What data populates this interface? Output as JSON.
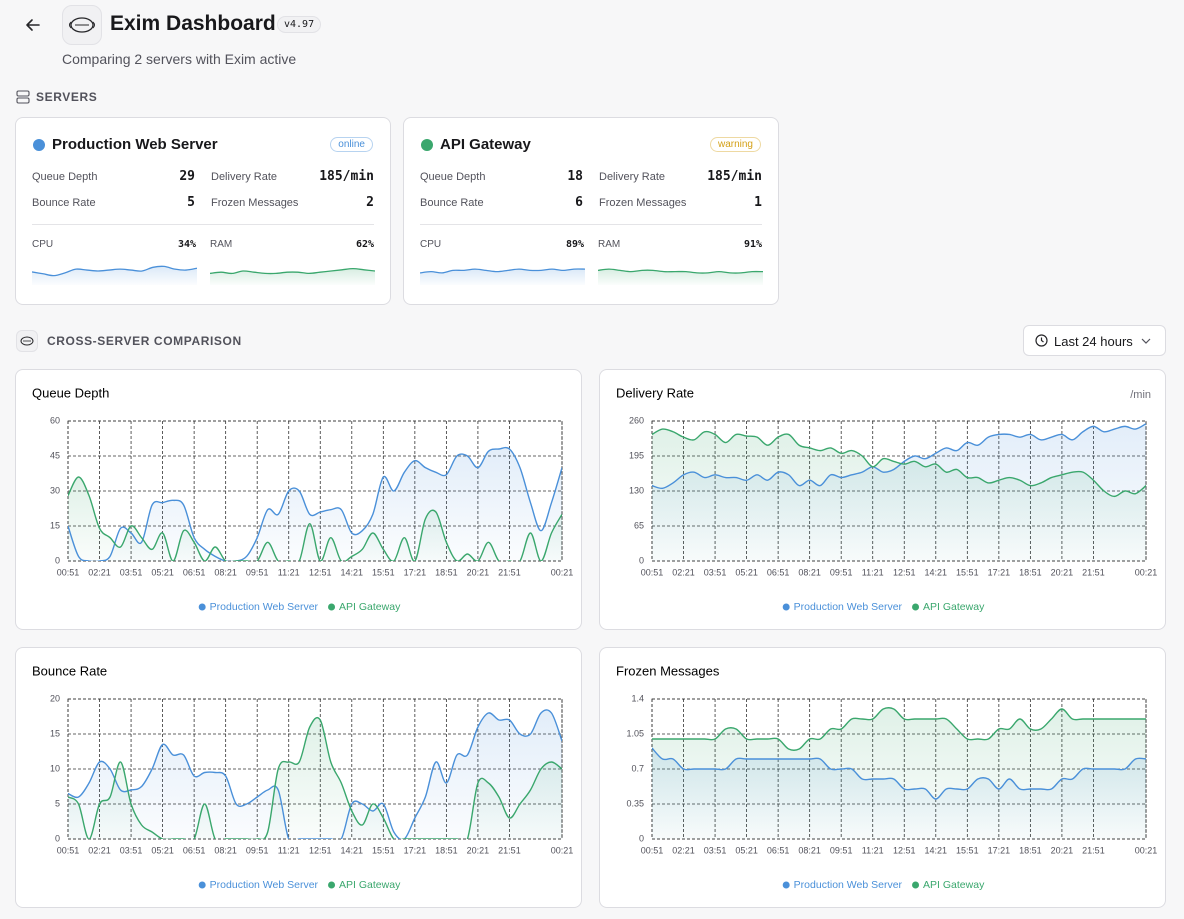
{
  "header": {
    "title": "Exim Dashboard",
    "version": "v4.97",
    "subtitle": "Comparing 2 servers with Exim active"
  },
  "servers_section": "SERVERS",
  "servers": [
    {
      "name": "Production Web Server",
      "status": "online",
      "status_color": "#4a90d9",
      "color": "#4a90d9",
      "metrics": [
        {
          "label": "Queue Depth",
          "value": 29
        },
        {
          "label": "Delivery Rate",
          "value": "185/min"
        },
        {
          "label": "Bounce Rate",
          "value": 5
        },
        {
          "label": "Frozen Messages",
          "value": 2
        }
      ],
      "cpu_label": "CPU",
      "cpu": "34%",
      "cpu_history": [
        30,
        28,
        26,
        29,
        33,
        32,
        31,
        32,
        33,
        32,
        31,
        35,
        36,
        33,
        32,
        34
      ],
      "ram_label": "RAM",
      "ram": "62%",
      "ram_history": [
        60,
        61,
        60,
        62,
        61,
        60,
        60,
        61,
        61,
        60,
        61,
        62,
        63,
        64,
        63,
        62
      ]
    },
    {
      "name": "API Gateway",
      "status": "warning",
      "status_color": "#d4a017",
      "color": "#3aa76d",
      "metrics": [
        {
          "label": "Queue Depth",
          "value": 18
        },
        {
          "label": "Delivery Rate",
          "value": "185/min"
        },
        {
          "label": "Bounce Rate",
          "value": 6
        },
        {
          "label": "Frozen Messages",
          "value": 1
        }
      ],
      "cpu_label": "CPU",
      "cpu": "89%",
      "cpu_history": [
        86,
        87,
        86,
        88,
        88,
        89,
        88,
        87,
        88,
        89,
        88,
        88,
        89,
        88,
        89,
        89
      ],
      "ram_label": "RAM",
      "ram": "91%",
      "ram_history": [
        92,
        93,
        92,
        91,
        92,
        92,
        91,
        91,
        91,
        90,
        90,
        91,
        90,
        90,
        91,
        91
      ]
    }
  ],
  "comparison_section": "CROSS-SERVER COMPARISON",
  "time_range": "Last 24 hours",
  "chart_data": [
    {
      "type": "line",
      "title": "Queue Depth",
      "grid": true,
      "area": true,
      "legend": "bottom",
      "categories": [
        "00:51",
        null,
        null,
        "02:21",
        null,
        null,
        "03:51",
        null,
        null,
        "05:21",
        null,
        null,
        "06:51",
        null,
        null,
        "08:21",
        null,
        null,
        "09:51",
        null,
        null,
        "11:21",
        null,
        null,
        "12:51",
        null,
        null,
        "14:21",
        null,
        null,
        "15:51",
        null,
        null,
        "17:21",
        null,
        null,
        "18:51",
        null,
        null,
        "20:21",
        null,
        null,
        "21:51",
        null,
        null,
        null,
        null,
        "00:21"
      ],
      "ylim": [
        0,
        60
      ],
      "yticks": [
        0,
        15,
        30,
        45,
        60
      ],
      "series": [
        {
          "name": "Production Web Server",
          "color": "#4a90d9",
          "values": [
            15,
            2,
            0,
            0,
            2,
            14,
            12,
            8,
            24,
            25,
            26,
            24,
            10,
            5,
            2,
            0,
            0,
            2,
            10,
            22,
            20,
            30,
            30,
            20,
            21,
            22,
            22,
            12,
            13,
            20,
            36,
            30,
            38,
            43,
            40,
            38,
            37,
            45,
            45,
            40,
            47,
            48,
            48,
            40,
            25,
            13,
            25,
            40
          ]
        },
        {
          "name": "API Gateway",
          "color": "#3aa76d",
          "values": [
            28,
            36,
            28,
            14,
            10,
            6,
            15,
            10,
            5,
            12,
            0,
            13,
            8,
            0,
            6,
            0,
            0,
            0,
            0,
            8,
            0,
            0,
            0,
            16,
            0,
            10,
            0,
            2,
            5,
            12,
            5,
            0,
            10,
            0,
            18,
            21,
            8,
            0,
            3,
            0,
            8,
            0,
            0,
            0,
            12,
            0,
            12,
            20
          ]
        }
      ]
    },
    {
      "type": "line",
      "title": "Delivery Rate",
      "y_unit": "/min",
      "grid": true,
      "area": true,
      "legend": "bottom",
      "categories": [
        "00:51",
        null,
        null,
        "02:21",
        null,
        null,
        "03:51",
        null,
        null,
        "05:21",
        null,
        null,
        "06:51",
        null,
        null,
        "08:21",
        null,
        null,
        "09:51",
        null,
        null,
        "11:21",
        null,
        null,
        "12:51",
        null,
        null,
        "14:21",
        null,
        null,
        "15:51",
        null,
        null,
        "17:21",
        null,
        null,
        "18:51",
        null,
        null,
        "20:21",
        null,
        null,
        "21:51",
        null,
        null,
        null,
        null,
        "00:21"
      ],
      "ylim": [
        0,
        260
      ],
      "yticks": [
        0,
        65,
        130,
        195,
        260
      ],
      "series": [
        {
          "name": "Production Web Server",
          "color": "#4a90d9",
          "values": [
            140,
            135,
            145,
            160,
            165,
            155,
            160,
            155,
            155,
            150,
            160,
            150,
            165,
            160,
            140,
            150,
            140,
            160,
            155,
            160,
            165,
            175,
            165,
            170,
            185,
            195,
            190,
            200,
            210,
            205,
            220,
            215,
            230,
            235,
            235,
            230,
            235,
            225,
            230,
            235,
            225,
            240,
            250,
            240,
            245,
            250,
            245,
            255
          ]
        },
        {
          "name": "API Gateway",
          "color": "#3aa76d",
          "values": [
            235,
            245,
            240,
            230,
            225,
            240,
            235,
            220,
            235,
            232,
            230,
            215,
            230,
            235,
            215,
            210,
            205,
            210,
            200,
            205,
            195,
            175,
            190,
            185,
            180,
            185,
            175,
            180,
            165,
            170,
            155,
            155,
            145,
            150,
            155,
            150,
            140,
            145,
            155,
            160,
            165,
            165,
            150,
            130,
            120,
            130,
            125,
            140
          ]
        }
      ]
    },
    {
      "type": "line",
      "title": "Bounce Rate",
      "grid": true,
      "area": true,
      "legend": "bottom",
      "categories": [
        "00:51",
        null,
        null,
        "02:21",
        null,
        null,
        "03:51",
        null,
        null,
        "05:21",
        null,
        null,
        "06:51",
        null,
        null,
        "08:21",
        null,
        null,
        "09:51",
        null,
        null,
        "11:21",
        null,
        null,
        "12:51",
        null,
        null,
        "14:21",
        null,
        null,
        "15:51",
        null,
        null,
        "17:21",
        null,
        null,
        "18:51",
        null,
        null,
        "20:21",
        null,
        null,
        "21:51",
        null,
        null,
        null,
        null,
        "00:21"
      ],
      "ylim": [
        0,
        20
      ],
      "yticks": [
        0,
        5,
        10,
        15,
        20
      ],
      "series": [
        {
          "name": "Production Web Server",
          "color": "#4a90d9",
          "values": [
            6.5,
            6,
            8,
            11,
            10,
            7,
            7,
            7.5,
            10,
            13.5,
            12,
            12,
            9,
            9.5,
            9.5,
            9,
            5,
            5,
            6,
            7,
            7,
            0,
            0,
            0,
            0,
            0,
            0,
            5,
            5,
            4,
            5,
            1,
            0,
            3,
            6,
            11,
            8,
            12,
            12,
            16,
            18,
            17,
            17,
            15,
            15,
            18,
            18,
            14
          ]
        },
        {
          "name": "API Gateway",
          "color": "#3aa76d",
          "values": [
            6,
            5,
            0,
            5,
            6,
            11,
            5,
            2,
            1,
            0,
            0,
            0,
            0,
            5,
            0,
            0,
            0,
            0,
            0,
            1,
            10,
            11,
            11,
            16,
            17,
            11,
            8,
            4,
            2,
            5,
            3,
            0,
            0,
            0,
            0,
            0,
            0,
            0,
            0,
            8,
            8,
            6,
            3,
            5,
            7,
            10,
            11,
            10
          ]
        }
      ]
    },
    {
      "type": "line",
      "title": "Frozen Messages",
      "grid": true,
      "area": true,
      "legend": "bottom",
      "categories": [
        "00:51",
        null,
        null,
        "02:21",
        null,
        null,
        "03:51",
        null,
        null,
        "05:21",
        null,
        null,
        "06:51",
        null,
        null,
        "08:21",
        null,
        null,
        "09:51",
        null,
        null,
        "11:21",
        null,
        null,
        "12:51",
        null,
        null,
        "14:21",
        null,
        null,
        "15:51",
        null,
        null,
        "17:21",
        null,
        null,
        "18:51",
        null,
        null,
        "20:21",
        null,
        null,
        "21:51",
        null,
        null,
        null,
        null,
        "00:21"
      ],
      "ylim": [
        0,
        1.4
      ],
      "yticks": [
        0,
        0.35,
        0.7,
        1.05,
        1.4
      ],
      "series": [
        {
          "name": "Production Web Server",
          "color": "#4a90d9",
          "values": [
            0.91,
            0.8,
            0.8,
            0.7,
            0.7,
            0.7,
            0.7,
            0.7,
            0.8,
            0.8,
            0.8,
            0.8,
            0.8,
            0.8,
            0.8,
            0.8,
            0.8,
            0.7,
            0.7,
            0.7,
            0.6,
            0.6,
            0.6,
            0.6,
            0.5,
            0.5,
            0.5,
            0.4,
            0.5,
            0.5,
            0.5,
            0.6,
            0.6,
            0.5,
            0.6,
            0.5,
            0.5,
            0.5,
            0.5,
            0.6,
            0.6,
            0.7,
            0.7,
            0.7,
            0.7,
            0.7,
            0.8,
            0.8
          ]
        },
        {
          "name": "API Gateway",
          "color": "#3aa76d",
          "values": [
            1.0,
            1.0,
            1.0,
            1.0,
            1.0,
            1.0,
            1.0,
            1.1,
            1.1,
            1.0,
            1.0,
            1.0,
            1.0,
            0.9,
            0.9,
            1.0,
            1.0,
            1.1,
            1.1,
            1.2,
            1.2,
            1.2,
            1.3,
            1.3,
            1.2,
            1.2,
            1.2,
            1.2,
            1.2,
            1.1,
            1.0,
            1.0,
            1.0,
            1.1,
            1.1,
            1.2,
            1.1,
            1.1,
            1.2,
            1.3,
            1.2,
            1.2,
            1.2,
            1.2,
            1.2,
            1.2,
            1.2,
            1.2
          ]
        }
      ]
    }
  ]
}
